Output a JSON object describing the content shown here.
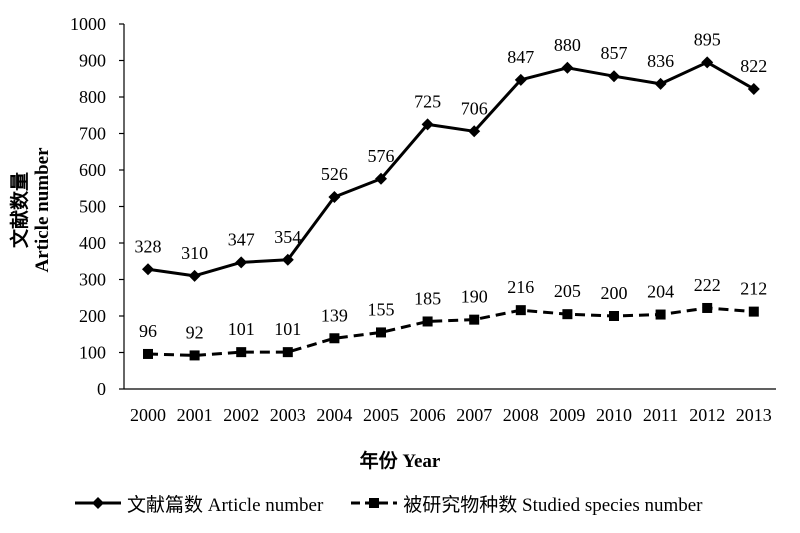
{
  "chart_data": {
    "type": "line",
    "categories": [
      "2000",
      "2001",
      "2002",
      "2003",
      "2004",
      "2005",
      "2006",
      "2007",
      "2008",
      "2009",
      "2010",
      "2011",
      "2012",
      "2013"
    ],
    "series": [
      {
        "name": "文献篇数  Article number",
        "values": [
          328,
          310,
          347,
          354,
          526,
          576,
          725,
          706,
          847,
          880,
          857,
          836,
          895,
          822
        ],
        "line_style": "solid",
        "marker": "diamond",
        "color": "#000000"
      },
      {
        "name": "被研究物种数  Studied species number",
        "values": [
          96,
          92,
          101,
          101,
          139,
          155,
          185,
          190,
          216,
          205,
          200,
          204,
          222,
          212
        ],
        "line_style": "dashed",
        "marker": "square",
        "color": "#000000"
      }
    ],
    "xlabel": "年份  Year",
    "ylabel_line1": "文献数量",
    "ylabel_line2": "Article number",
    "ylim": [
      0,
      1000
    ],
    "yticks": [
      "0",
      "100",
      "200",
      "300",
      "400",
      "500",
      "600",
      "700",
      "800",
      "900",
      "1000"
    ],
    "grid": false,
    "legend_position": "bottom"
  }
}
